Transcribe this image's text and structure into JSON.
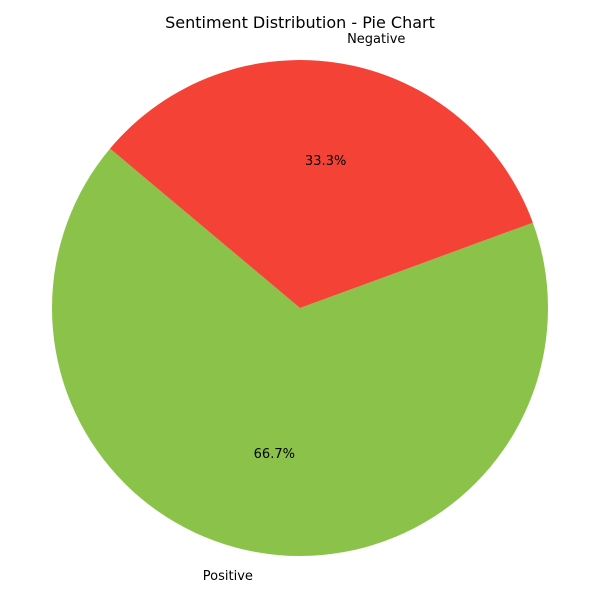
{
  "chart_data": {
    "type": "pie",
    "title": "Sentiment Distribution - Pie Chart",
    "slices": [
      {
        "label": "Positive",
        "value": 66.7,
        "display": "66.7%",
        "color": "#8bc34a"
      },
      {
        "label": "Negative",
        "value": 33.3,
        "display": "33.3%",
        "color": "#f44336"
      }
    ],
    "start_angle_deg": 140,
    "direction": "counterclockwise"
  }
}
